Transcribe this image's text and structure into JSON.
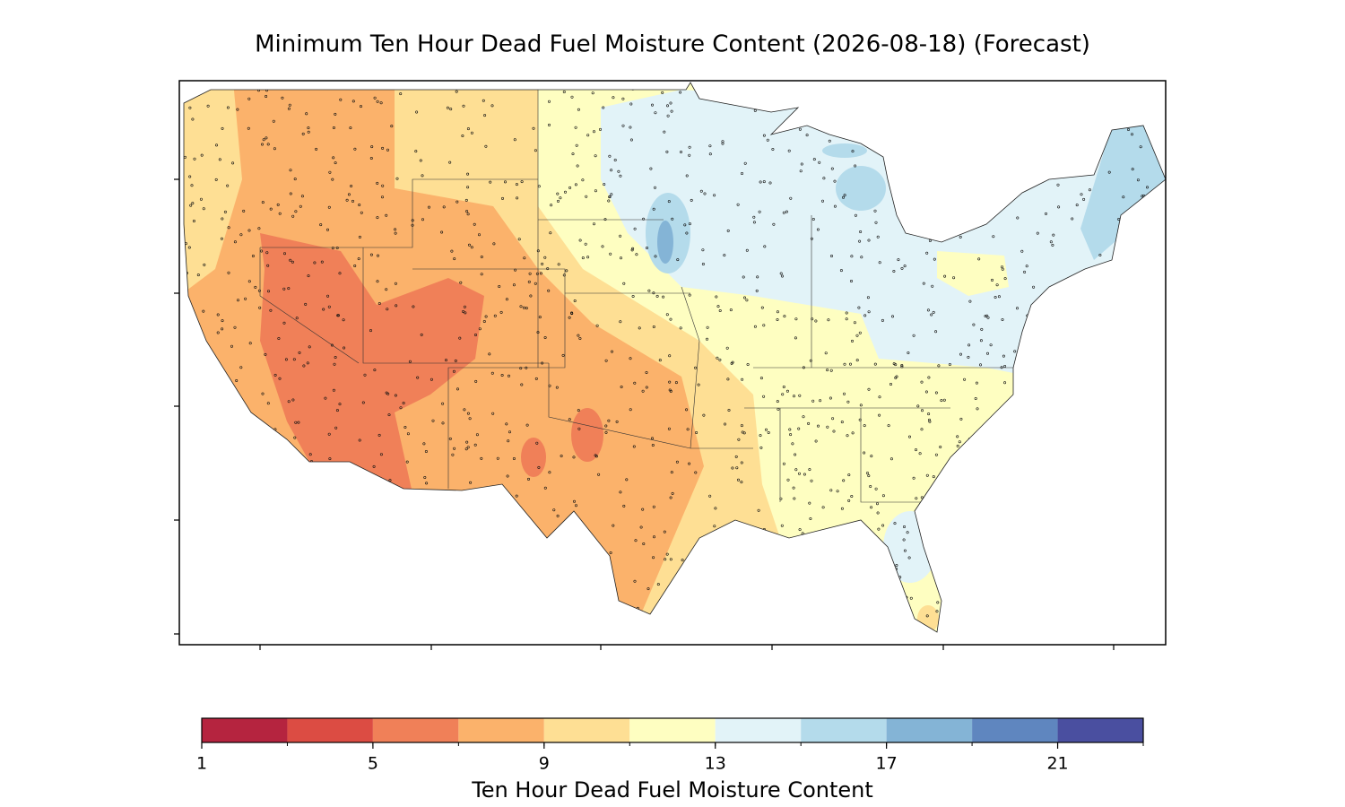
{
  "title": "Minimum Ten Hour Dead Fuel Moisture Content (2026-08-18) (Forecast)",
  "colorbar": {
    "label": "Ten Hour Dead Fuel Moisture Content",
    "lim": [
      1,
      23
    ],
    "bounds": [
      1,
      3,
      5,
      7,
      9,
      11,
      13,
      15,
      17,
      19,
      21,
      23
    ],
    "colors": [
      "#b5243f",
      "#dc4c43",
      "#f08058",
      "#fbb26b",
      "#fedf94",
      "#fefec1",
      "#e2f3f8",
      "#b4dbeb",
      "#84b4d6",
      "#5f86bf",
      "#4a4fa0"
    ],
    "ticks": [
      1,
      5,
      9,
      13,
      17,
      21
    ]
  }
}
